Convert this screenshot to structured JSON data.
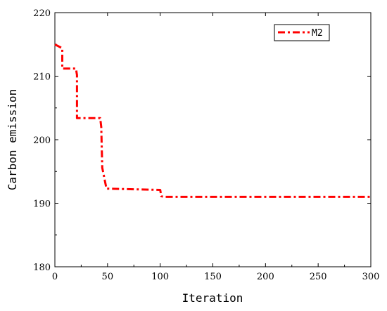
{
  "chart_data": {
    "type": "line",
    "xlabel": "Iteration",
    "ylabel": "Carbon emission",
    "xlim": [
      0,
      300
    ],
    "ylim": [
      180,
      220
    ],
    "xticks": [
      0,
      50,
      100,
      150,
      200,
      250,
      300
    ],
    "yticks": [
      180,
      190,
      200,
      210,
      220
    ],
    "xtick_labels": [
      "0",
      "50",
      "100",
      "150",
      "200",
      "250",
      "300"
    ],
    "ytick_labels": [
      "180",
      "190",
      "200",
      "210",
      "220"
    ],
    "legend_position": "top-right",
    "grid": false,
    "series": [
      {
        "name": "M2",
        "color": "#ff0000",
        "line_style": "dash-dot",
        "x": [
          0,
          7,
          7,
          20,
          21,
          21,
          43,
          44,
          45,
          49,
          100,
          101,
          103,
          300
        ],
        "y": [
          215.0,
          214.4,
          211.2,
          211.2,
          210.2,
          203.4,
          203.4,
          202.0,
          195.6,
          192.3,
          192.1,
          191.1,
          191.0,
          191.0
        ]
      }
    ]
  }
}
